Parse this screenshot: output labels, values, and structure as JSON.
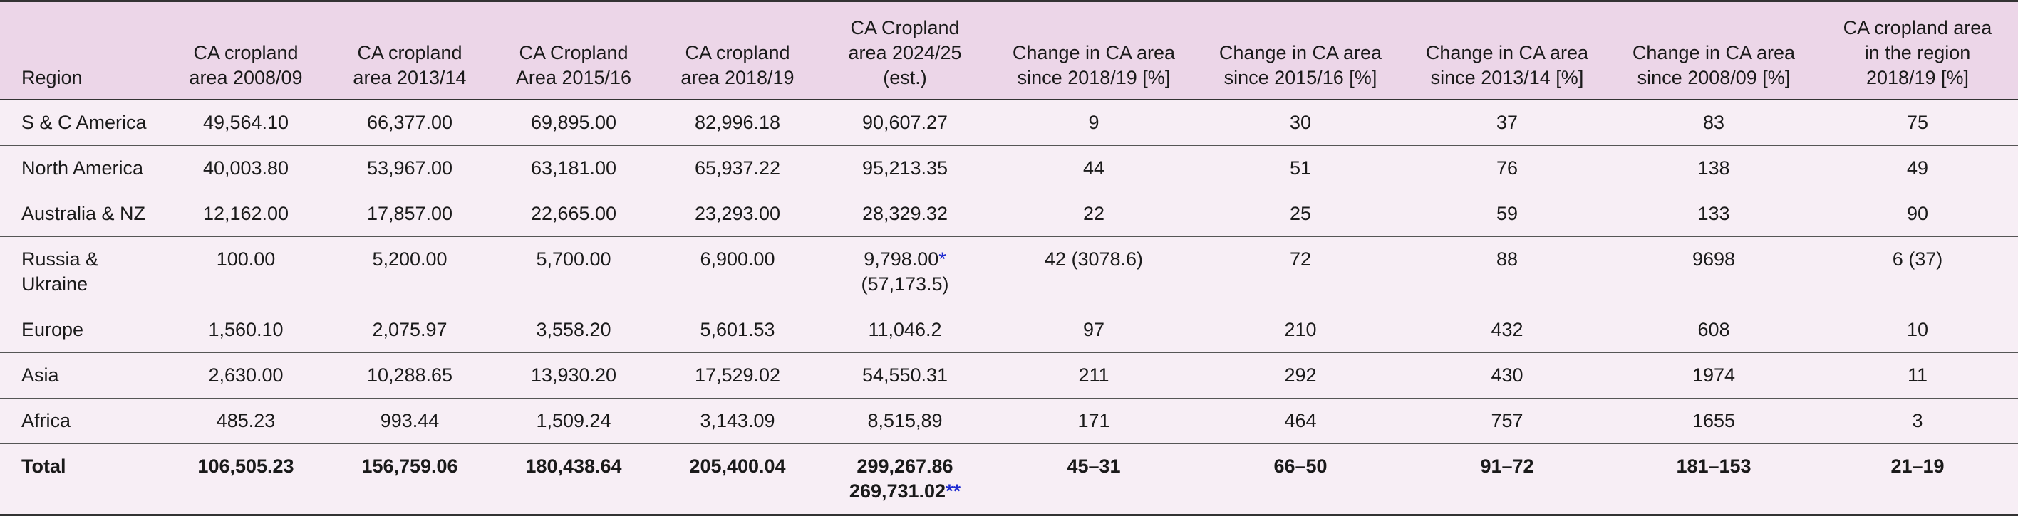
{
  "table": {
    "headers": {
      "region": "Region",
      "ca_2008_09": [
        "CA cropland",
        "area 2008/09"
      ],
      "ca_2013_14": [
        "CA cropland",
        "area 2013/14"
      ],
      "ca_2015_16": [
        "CA Cropland",
        "Area 2015/16"
      ],
      "ca_2018_19": [
        "CA cropland",
        "area 2018/19"
      ],
      "ca_2024_25": [
        "CA Cropland",
        "area 2024/25",
        "(est.)"
      ],
      "chg_since_2018_19": [
        "Change in CA area",
        "since 2018/19 [%]"
      ],
      "chg_since_2015_16": [
        "Change in CA area",
        "since 2015/16 [%]"
      ],
      "chg_since_2013_14": [
        "Change in CA area",
        "since 2013/14 [%]"
      ],
      "chg_since_2008_09": [
        "Change in CA area",
        "since 2008/09 [%]"
      ],
      "ca_region_share": [
        "CA cropland area",
        "in the region",
        "2018/19 [%]"
      ]
    },
    "rows": [
      {
        "region": "S & C America",
        "ca_2008_09": "49,564.10",
        "ca_2013_14": "66,377.00",
        "ca_2015_16": "69,895.00",
        "ca_2018_19": "82,996.18",
        "ca_2024_25": "90,607.27",
        "chg_since_2018_19": "9",
        "chg_since_2015_16": "30",
        "chg_since_2013_14": "37",
        "chg_since_2008_09": "83",
        "ca_region_share": "75"
      },
      {
        "region": "North America",
        "ca_2008_09": "40,003.80",
        "ca_2013_14": "53,967.00",
        "ca_2015_16": "63,181.00",
        "ca_2018_19": "65,937.22",
        "ca_2024_25": "95,213.35",
        "chg_since_2018_19": "44",
        "chg_since_2015_16": "51",
        "chg_since_2013_14": "76",
        "chg_since_2008_09": "138",
        "ca_region_share": "49"
      },
      {
        "region": "Australia & NZ",
        "ca_2008_09": "12,162.00",
        "ca_2013_14": "17,857.00",
        "ca_2015_16": "22,665.00",
        "ca_2018_19": "23,293.00",
        "ca_2024_25": "28,329.32",
        "chg_since_2018_19": "22",
        "chg_since_2015_16": "25",
        "chg_since_2013_14": "59",
        "chg_since_2008_09": "133",
        "ca_region_share": "90"
      },
      {
        "region": [
          "Russia &",
          "Ukraine"
        ],
        "ca_2008_09": "100.00",
        "ca_2013_14": "5,200.00",
        "ca_2015_16": "5,700.00",
        "ca_2018_19": "6,900.00",
        "ca_2024_25": [
          "9,798.00",
          "(57,173.5)"
        ],
        "ca_2024_25_mark": "*",
        "chg_since_2018_19": "42 (3078.6)",
        "chg_since_2015_16": "72",
        "chg_since_2013_14": "88",
        "chg_since_2008_09": "9698",
        "ca_region_share": "6 (37)"
      },
      {
        "region": "Europe",
        "ca_2008_09": "1,560.10",
        "ca_2013_14": "2,075.97",
        "ca_2015_16": "3,558.20",
        "ca_2018_19": "5,601.53",
        "ca_2024_25": "11,046.2",
        "chg_since_2018_19": "97",
        "chg_since_2015_16": "210",
        "chg_since_2013_14": "432",
        "chg_since_2008_09": "608",
        "ca_region_share": "10"
      },
      {
        "region": "Asia",
        "ca_2008_09": "2,630.00",
        "ca_2013_14": "10,288.65",
        "ca_2015_16": "13,930.20",
        "ca_2018_19": "17,529.02",
        "ca_2024_25": "54,550.31",
        "chg_since_2018_19": "211",
        "chg_since_2015_16": "292",
        "chg_since_2013_14": "430",
        "chg_since_2008_09": "1974",
        "ca_region_share": "11"
      },
      {
        "region": "Africa",
        "ca_2008_09": "485.23",
        "ca_2013_14": "993.44",
        "ca_2015_16": "1,509.24",
        "ca_2018_19": "3,143.09",
        "ca_2024_25": "8,515,89",
        "chg_since_2018_19": "171",
        "chg_since_2015_16": "464",
        "chg_since_2013_14": "757",
        "chg_since_2008_09": "1655",
        "ca_region_share": "3"
      }
    ],
    "total": {
      "region": "Total",
      "ca_2008_09": "106,505.23",
      "ca_2013_14": "156,759.06",
      "ca_2015_16": "180,438.64",
      "ca_2018_19": "205,400.04",
      "ca_2024_25": [
        "299,267.86",
        "269,731.02"
      ],
      "ca_2024_25_mark": "**",
      "chg_since_2018_19": "45–31",
      "chg_since_2015_16": "66–50",
      "chg_since_2013_14": "91–72",
      "chg_since_2008_09": "181–153",
      "ca_region_share": "21–19"
    }
  },
  "colors": {
    "header_bg": "#ecd6e8",
    "row_bg": "#f7eef5",
    "footnote_mark": "#1d2ad0"
  }
}
